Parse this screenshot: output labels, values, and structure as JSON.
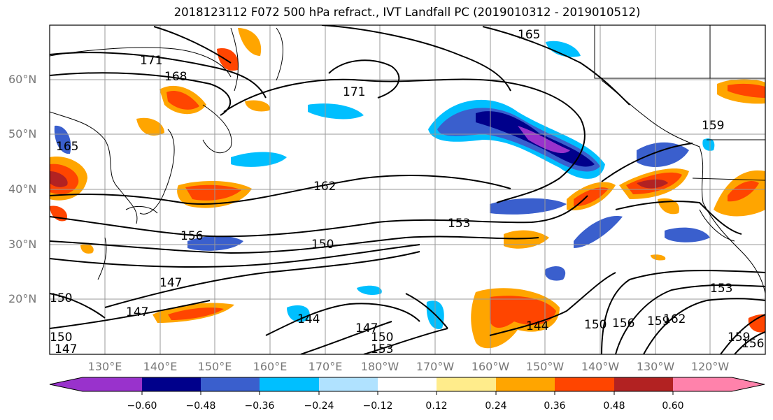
{
  "title": "2018123112 F072 500 hPa refract., IVT Landfall PC (2019010312 - 2019010512)",
  "lat_labels": [
    "60°N",
    "50°N",
    "40°N",
    "30°N",
    "20°N"
  ],
  "lon_labels": [
    "130°E",
    "140°E",
    "150°E",
    "160°E",
    "170°E",
    "180°W",
    "170°W",
    "160°W",
    "150°W",
    "140°W",
    "130°W",
    "120°W"
  ],
  "colorbar": {
    "ticks": [
      "−0.60",
      "−0.48",
      "−0.36",
      "−0.24",
      "−0.12",
      "0.12",
      "0.24",
      "0.36",
      "0.48",
      "0.60"
    ],
    "colors": [
      "#9932cc",
      "#00008b",
      "#3a5fcd",
      "#00bfff",
      "#b0e2ff",
      "#ffffff",
      "#ffec8b",
      "#ffa500",
      "#ff4500",
      "#b22222",
      "#ff82ab"
    ]
  },
  "contour_labels": [
    "171",
    "168",
    "165",
    "171",
    "165",
    "162",
    "156",
    "153",
    "150",
    "159",
    "150",
    "147",
    "147",
    "144",
    "147",
    "150",
    "153",
    "144",
    "150",
    "156",
    "159",
    "162",
    "153",
    "159",
    "156",
    "150",
    "147"
  ]
}
